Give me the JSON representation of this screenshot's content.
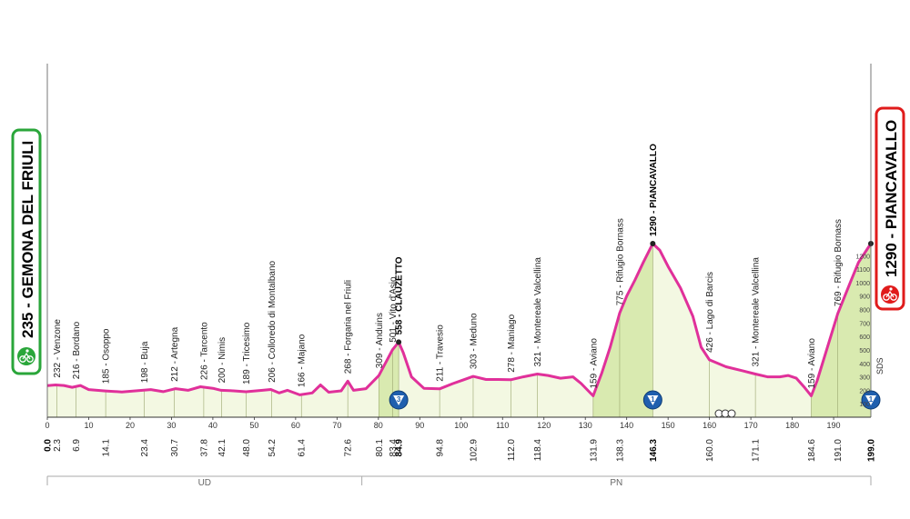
{
  "chart_data": {
    "type": "area",
    "title": "",
    "xlabel": "",
    "ylabel": "",
    "xlim": [
      0,
      199
    ],
    "ylim": [
      0,
      1300
    ],
    "x_ticks": [
      0,
      10,
      20,
      30,
      40,
      50,
      60,
      70,
      80,
      90,
      100,
      110,
      120,
      130,
      140,
      150,
      160,
      170,
      180,
      190
    ],
    "alt_ticks": [
      "100",
      "200",
      "300",
      "400",
      "500",
      "600",
      "700",
      "800",
      "900",
      "1000",
      "1100",
      "1200"
    ],
    "start": {
      "label": "235 - GEMONA DEL FRIULI",
      "km": "0.0"
    },
    "finish": {
      "label": "1290 - PIANCAVALLO",
      "km": "199.0"
    },
    "profile": [
      [
        0,
        235
      ],
      [
        2,
        240
      ],
      [
        4,
        236
      ],
      [
        6,
        222
      ],
      [
        8,
        236
      ],
      [
        10,
        205
      ],
      [
        14,
        195
      ],
      [
        18,
        188
      ],
      [
        22,
        198
      ],
      [
        25,
        205
      ],
      [
        28,
        190
      ],
      [
        31,
        212
      ],
      [
        34,
        200
      ],
      [
        37,
        226
      ],
      [
        40,
        215
      ],
      [
        42,
        200
      ],
      [
        45,
        196
      ],
      [
        48,
        189
      ],
      [
        52,
        200
      ],
      [
        54,
        206
      ],
      [
        56,
        180
      ],
      [
        58,
        200
      ],
      [
        61,
        166
      ],
      [
        64,
        180
      ],
      [
        66,
        240
      ],
      [
        68,
        186
      ],
      [
        71,
        196
      ],
      [
        72.6,
        268
      ],
      [
        74,
        200
      ],
      [
        77,
        212
      ],
      [
        80.1,
        309
      ],
      [
        83.4,
        501
      ],
      [
        84.9,
        558
      ],
      [
        86,
        480
      ],
      [
        88,
        300
      ],
      [
        91,
        215
      ],
      [
        94.8,
        211
      ],
      [
        98,
        250
      ],
      [
        102.9,
        303
      ],
      [
        106,
        280
      ],
      [
        109,
        280
      ],
      [
        112,
        278
      ],
      [
        115,
        300
      ],
      [
        118.4,
        321
      ],
      [
        121,
        310
      ],
      [
        124,
        290
      ],
      [
        127,
        300
      ],
      [
        129,
        250
      ],
      [
        131.9,
        159
      ],
      [
        134,
        330
      ],
      [
        136,
        520
      ],
      [
        138.3,
        775
      ],
      [
        140,
        900
      ],
      [
        142,
        1020
      ],
      [
        144,
        1150
      ],
      [
        146.3,
        1290
      ],
      [
        148,
        1240
      ],
      [
        150,
        1120
      ],
      [
        153,
        960
      ],
      [
        156,
        750
      ],
      [
        158,
        520
      ],
      [
        160,
        426
      ],
      [
        164,
        375
      ],
      [
        168,
        345
      ],
      [
        171.1,
        321
      ],
      [
        174,
        300
      ],
      [
        177,
        300
      ],
      [
        179,
        310
      ],
      [
        181,
        290
      ],
      [
        183,
        220
      ],
      [
        184.6,
        159
      ],
      [
        186,
        270
      ],
      [
        188,
        470
      ],
      [
        191,
        769
      ],
      [
        194,
        1000
      ],
      [
        196,
        1150
      ],
      [
        199,
        1290
      ]
    ],
    "shaded_climbs": [
      [
        80.1,
        84.9
      ],
      [
        131.9,
        146.3
      ],
      [
        184.6,
        199.0
      ]
    ],
    "climb_badges": [
      {
        "km": 84.9,
        "label": "3"
      },
      {
        "km": 146.3,
        "label": "1"
      },
      {
        "km": 199.0,
        "label": "1"
      }
    ],
    "dist_labels": [
      {
        "km": 0.0,
        "text": "0.0",
        "bold": true
      },
      {
        "km": 2.3,
        "text": "2.3"
      },
      {
        "km": 6.9,
        "text": "6.9"
      },
      {
        "km": 14.1,
        "text": "14.1"
      },
      {
        "km": 23.4,
        "text": "23.4"
      },
      {
        "km": 30.7,
        "text": "30.7"
      },
      {
        "km": 37.8,
        "text": "37.8"
      },
      {
        "km": 42.1,
        "text": "42.1"
      },
      {
        "km": 48.0,
        "text": "48.0"
      },
      {
        "km": 54.2,
        "text": "54.2"
      },
      {
        "km": 61.4,
        "text": "61.4"
      },
      {
        "km": 72.6,
        "text": "72.6"
      },
      {
        "km": 80.1,
        "text": "80.1"
      },
      {
        "km": 83.4,
        "text": "83.4"
      },
      {
        "km": 84.9,
        "text": "84.9",
        "bold": true
      },
      {
        "km": 94.8,
        "text": "94.8"
      },
      {
        "km": 102.9,
        "text": "102.9"
      },
      {
        "km": 112.0,
        "text": "112.0"
      },
      {
        "km": 118.4,
        "text": "118.4"
      },
      {
        "km": 131.9,
        "text": "131.9"
      },
      {
        "km": 138.3,
        "text": "138.3"
      },
      {
        "km": 146.3,
        "text": "146.3",
        "bold": true
      },
      {
        "km": 160.0,
        "text": "160.0"
      },
      {
        "km": 171.1,
        "text": "171.1"
      },
      {
        "km": 184.6,
        "text": "184.6"
      },
      {
        "km": 191.0,
        "text": "191.0"
      },
      {
        "km": 199.0,
        "text": "199.0",
        "bold": true
      }
    ],
    "places": [
      {
        "km": 2.3,
        "text": "232 - Venzone"
      },
      {
        "km": 6.9,
        "text": "216 - Bordano"
      },
      {
        "km": 14.1,
        "text": "185 - Osoppo"
      },
      {
        "km": 23.4,
        "text": "198 - Buja"
      },
      {
        "km": 30.7,
        "text": "212 - Artegna"
      },
      {
        "km": 37.8,
        "text": "226 - Tarcento"
      },
      {
        "km": 42.1,
        "text": "200 - Nimis"
      },
      {
        "km": 48.0,
        "text": "189 - Tricesimo"
      },
      {
        "km": 54.2,
        "text": "206 - Colloredo di Montalbano"
      },
      {
        "km": 61.4,
        "text": "166 - Majano"
      },
      {
        "km": 72.6,
        "text": "268 - Forgaria nel Friuli"
      },
      {
        "km": 80.1,
        "text": "309 - Anduins"
      },
      {
        "km": 83.4,
        "text": "501 - Vito d'Asio"
      },
      {
        "km": 84.9,
        "text": "558 - CLAUZETTO",
        "bold": true
      },
      {
        "km": 94.8,
        "text": "211 - Travesio"
      },
      {
        "km": 102.9,
        "text": "303 - Meduno"
      },
      {
        "km": 112.0,
        "text": "278 - Maniago"
      },
      {
        "km": 118.4,
        "text": "321 - Montereale Valcellina"
      },
      {
        "km": 131.9,
        "text": "159 - Aviano"
      },
      {
        "km": 138.3,
        "text": "775 - Rifugio Bornass"
      },
      {
        "km": 146.3,
        "text": "1290 - PIANCAVALLO",
        "bold": true
      },
      {
        "km": 160.0,
        "text": "426 - Lago di Barcis"
      },
      {
        "km": 171.1,
        "text": "321 - Montereale Valcellina"
      },
      {
        "km": 184.6,
        "text": "159 - Aviano"
      },
      {
        "km": 191.0,
        "text": "769 - Rifugio Bornass"
      }
    ],
    "provinces": [
      {
        "label": "UD",
        "from": 0,
        "to": 76
      },
      {
        "label": "PN",
        "from": 76,
        "to": 199
      }
    ],
    "side_label": "SDS",
    "colors": {
      "profile_line": "#e0309a",
      "fill_light": "#f3f8e2",
      "fill_climb": "#d9eab0",
      "start_border": "#2aa63a",
      "finish_border": "#e01b1b",
      "badge_blue": "#1f5fae"
    }
  }
}
